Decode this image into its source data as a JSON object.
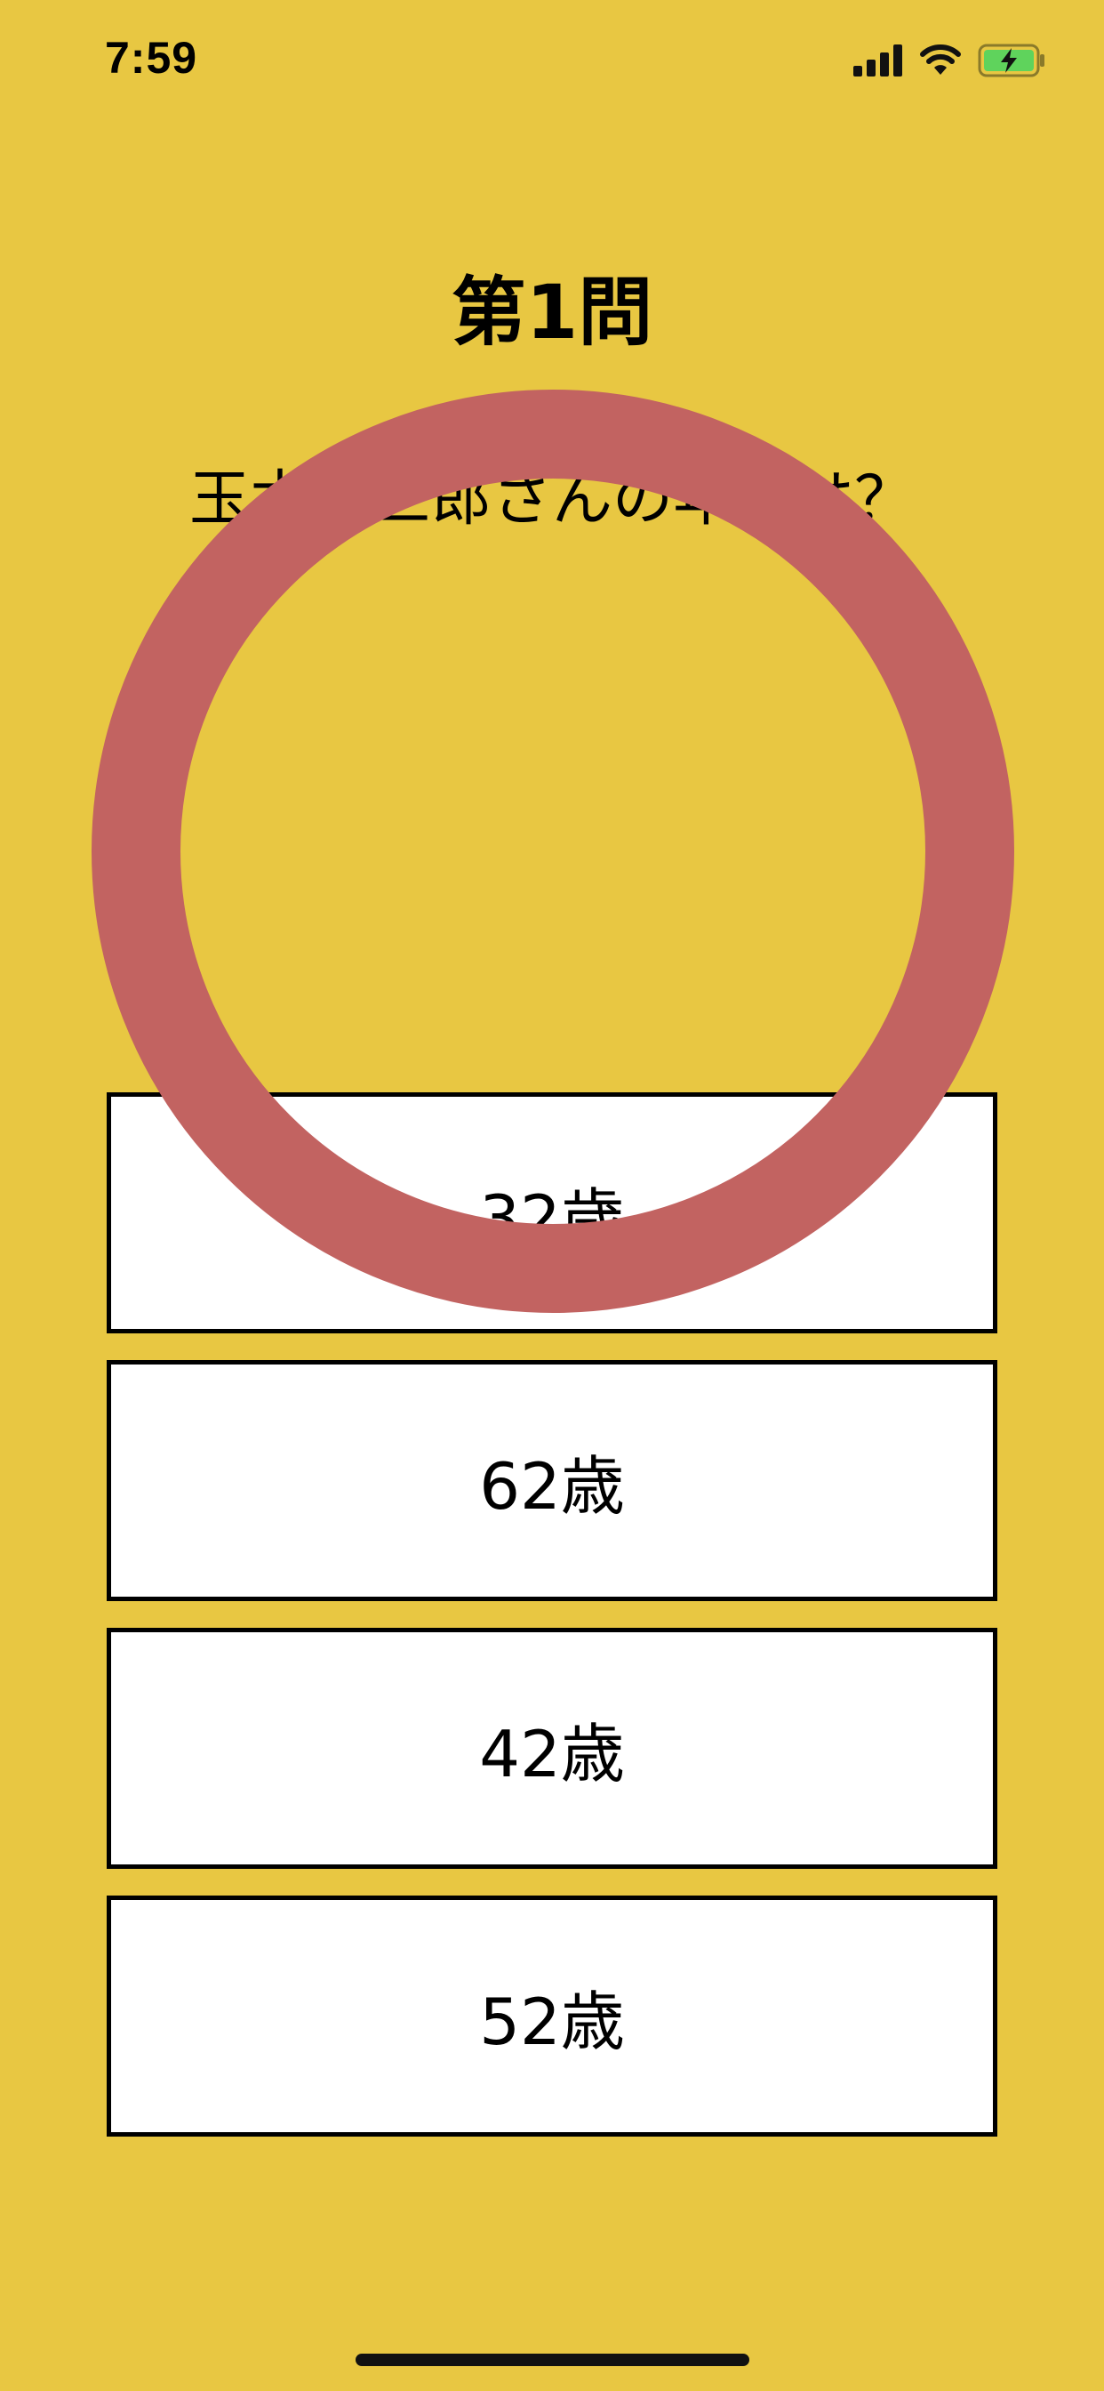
{
  "status_bar": {
    "time": "7:59",
    "icons": [
      "cellular-signal-icon",
      "wifi-icon",
      "battery-charging-icon"
    ]
  },
  "quiz": {
    "question_number": "第1問",
    "question_text": "玉木宏三郎さんの年齢は？",
    "answers": [
      "32歳",
      "62歳",
      "42歳",
      "52歳"
    ]
  },
  "overlay": {
    "type": "correct-circle-icon",
    "color": "#C26361"
  },
  "colors": {
    "background": "#E8C742",
    "button_bg": "#FFFFFF",
    "button_border": "#000000",
    "battery_fill": "#5FD35C"
  }
}
